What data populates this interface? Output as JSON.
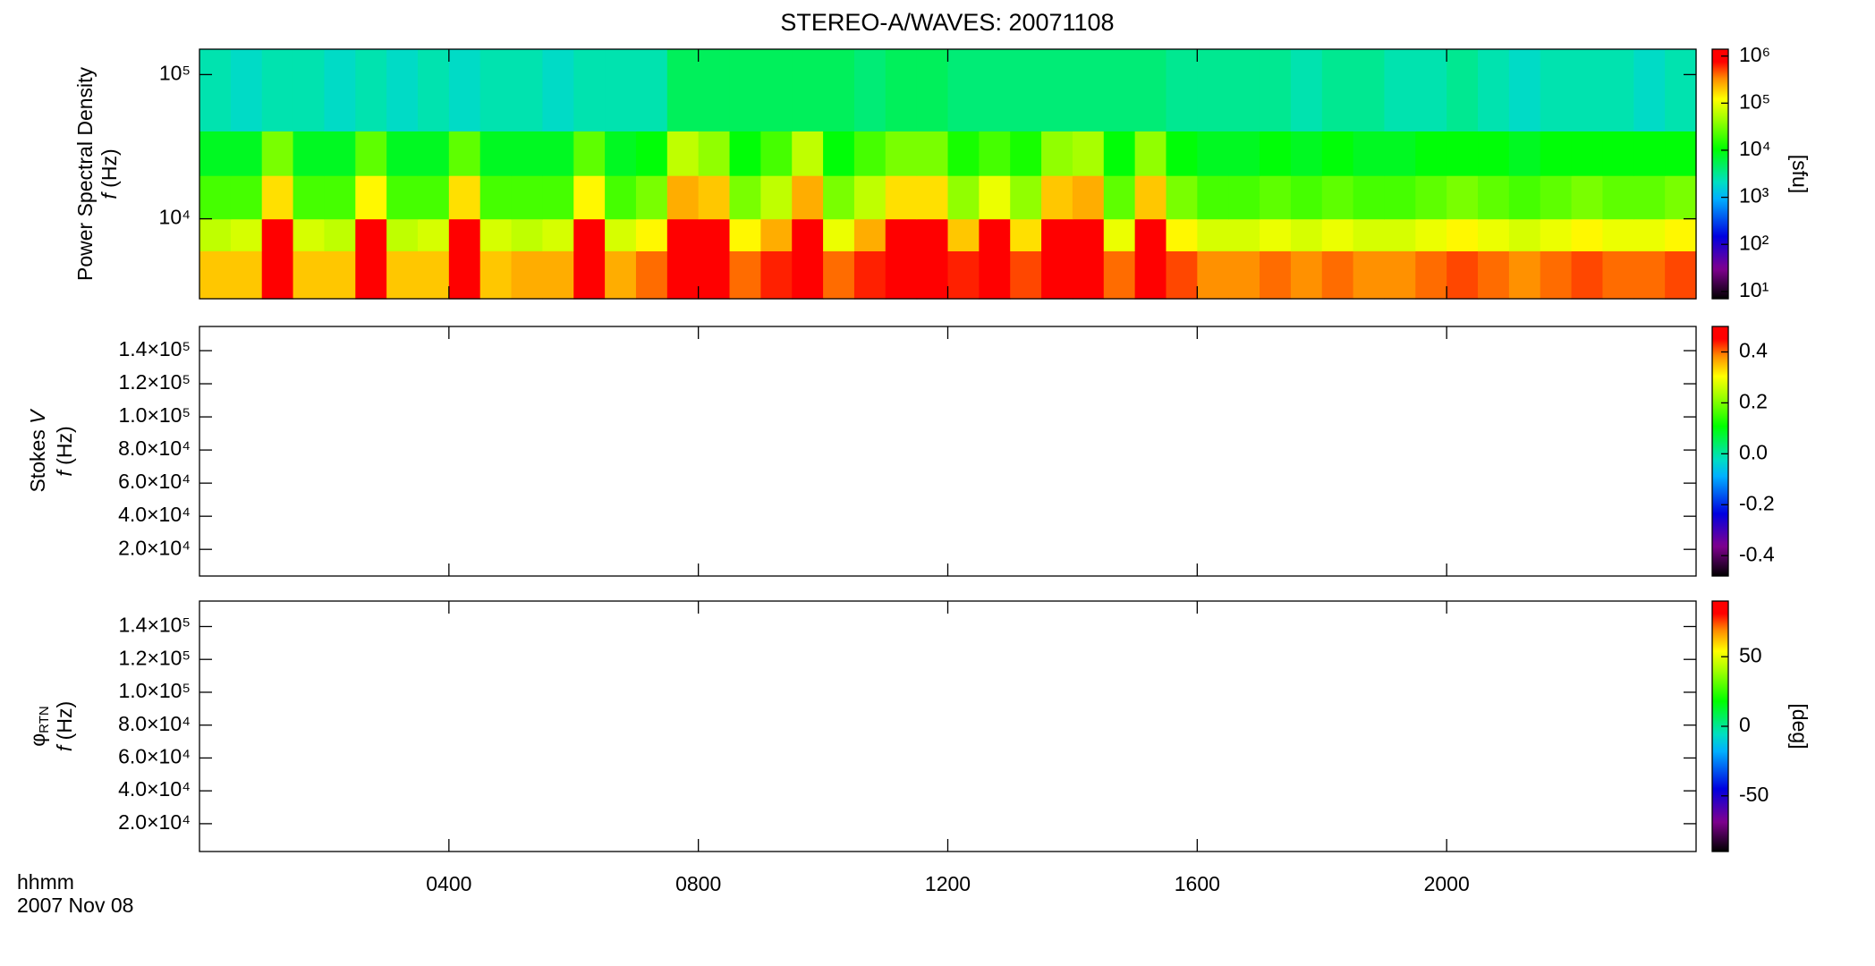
{
  "chart_data": [
    {
      "type": "heatmap",
      "title": "STEREO-A/WAVES: 20071108",
      "ylabel": "Power Spectral Density",
      "ylabel_var": "f",
      "ylabel_unit": "(Hz)",
      "ylog": true,
      "ylim": [
        2790,
        150000
      ],
      "yticks": [
        {
          "value": 10000,
          "label": "10⁴"
        },
        {
          "value": 100000,
          "label": "10⁵"
        }
      ],
      "xbins": [
        0,
        0.5,
        1,
        1.5,
        2,
        2.5,
        3,
        3.5,
        4,
        4.5,
        5,
        5.5,
        6,
        6.5,
        7,
        7.5,
        8,
        8.5,
        9,
        9.5,
        10,
        10.5,
        11,
        11.5,
        12,
        12.5,
        13,
        13.5,
        14,
        14.5,
        15,
        15.5,
        16,
        16.5,
        17,
        17.5,
        18,
        18.5,
        19,
        19.5,
        20,
        20.5,
        21,
        21.5,
        22,
        22.5,
        23,
        23.5,
        24
      ],
      "ybins": [
        2790,
        6000,
        10000,
        20000,
        40700,
        150000
      ],
      "values": [
        [
          200000,
          200000,
          1400000,
          200000,
          200000,
          1400000,
          200000,
          200000,
          1400000,
          200000,
          250000,
          250000,
          1400000,
          250000,
          400000,
          1400000,
          1400000,
          400000,
          630000,
          1400000,
          400000,
          630000,
          1400000,
          1400000,
          630000,
          1400000,
          500000,
          1400000,
          1400000,
          400000,
          1400000,
          500000,
          320000,
          320000,
          400000,
          320000,
          400000,
          320000,
          320000,
          400000,
          500000,
          400000,
          320000,
          400000,
          500000,
          400000,
          400000,
          500000
        ],
        [
          63000,
          80000,
          1400000,
          80000,
          63000,
          1400000,
          63000,
          80000,
          1400000,
          80000,
          63000,
          80000,
          1400000,
          80000,
          130000,
          1400000,
          1400000,
          130000,
          250000,
          1400000,
          100000,
          250000,
          1400000,
          1400000,
          200000,
          1400000,
          160000,
          1400000,
          1400000,
          100000,
          1400000,
          130000,
          80000,
          80000,
          100000,
          80000,
          100000,
          80000,
          80000,
          100000,
          130000,
          100000,
          80000,
          100000,
          130000,
          100000,
          100000,
          130000
        ],
        [
          20000,
          20000,
          160000,
          20000,
          20000,
          130000,
          20000,
          20000,
          160000,
          20000,
          20000,
          20000,
          130000,
          20000,
          32000,
          250000,
          200000,
          32000,
          63000,
          250000,
          32000,
          63000,
          160000,
          160000,
          40000,
          100000,
          40000,
          200000,
          250000,
          25000,
          200000,
          32000,
          20000,
          20000,
          25000,
          20000,
          25000,
          20000,
          20000,
          25000,
          32000,
          25000,
          20000,
          25000,
          32000,
          25000,
          25000,
          32000
        ],
        [
          8000,
          8000,
          32000,
          8000,
          8000,
          25000,
          8000,
          8000,
          25000,
          8000,
          8000,
          8000,
          25000,
          8000,
          10000,
          63000,
          40000,
          10000,
          20000,
          63000,
          10000,
          20000,
          32000,
          32000,
          13000,
          20000,
          13000,
          40000,
          50000,
          10000,
          40000,
          10000,
          8000,
          8000,
          10000,
          8000,
          10000,
          8000,
          8000,
          10000,
          10000,
          10000,
          8000,
          10000,
          10000,
          10000,
          10000,
          10000
        ],
        [
          2500,
          2000,
          2500,
          2500,
          2000,
          2500,
          2000,
          2500,
          2000,
          2500,
          2500,
          2000,
          2500,
          2500,
          2500,
          5000,
          5000,
          5000,
          5000,
          5000,
          5000,
          4000,
          5000,
          5000,
          4000,
          4000,
          4000,
          4000,
          4000,
          4000,
          4000,
          3200,
          3200,
          3200,
          3200,
          2500,
          3200,
          3200,
          2500,
          2500,
          3200,
          2500,
          2000,
          2500,
          2500,
          2500,
          2000,
          2500
        ]
      ],
      "colorbar": {
        "log": true,
        "lim": [
          7,
          1400000
        ],
        "label": "[sfu]",
        "ticks": [
          {
            "value": 10,
            "label": "10¹"
          },
          {
            "value": 100,
            "label": "10²"
          },
          {
            "value": 1000,
            "label": "10³"
          },
          {
            "value": 10000,
            "label": "10⁴"
          },
          {
            "value": 100000,
            "label": "10⁵"
          },
          {
            "value": 1000000,
            "label": "10⁶"
          }
        ]
      }
    },
    {
      "type": "heatmap",
      "ylabel": "Stokes",
      "ylabel_var": "V",
      "ylabel_f": "f",
      "ylabel_unit": "(Hz)",
      "ylim": [
        3900,
        154600
      ],
      "yticks": [
        {
          "value": 20000,
          "label": "2.0×10⁴"
        },
        {
          "value": 40000,
          "label": "4.0×10⁴"
        },
        {
          "value": 60000,
          "label": "6.0×10⁴"
        },
        {
          "value": 80000,
          "label": "8.0×10⁴"
        },
        {
          "value": 100000,
          "label": "1.0×10⁵"
        },
        {
          "value": 120000,
          "label": "1.2×10⁵"
        },
        {
          "value": 140000,
          "label": "1.4×10⁵"
        }
      ],
      "colorbar": {
        "log": false,
        "lim": [
          -0.48,
          0.5
        ],
        "ticks": [
          -0.4,
          -0.2,
          {
            "value": 0,
            "label": "0.0"
          },
          0.2,
          0.4
        ]
      }
    },
    {
      "type": "heatmap",
      "ylabel": "φ",
      "ylabel_sub": "RTN",
      "ylabel_var": "f",
      "ylabel_unit": "(Hz)",
      "ylim": [
        3070,
        155500
      ],
      "yticks": [
        {
          "value": 20000,
          "label": "2.0×10⁴"
        },
        {
          "value": 40000,
          "label": "4.0×10⁴"
        },
        {
          "value": 60000,
          "label": "6.0×10⁴"
        },
        {
          "value": 80000,
          "label": "8.0×10⁴"
        },
        {
          "value": 100000,
          "label": "1.0×10⁵"
        },
        {
          "value": 120000,
          "label": "1.2×10⁵"
        },
        {
          "value": 140000,
          "label": "1.4×10⁵"
        }
      ],
      "xlim": [
        0,
        24
      ],
      "xticks": [
        {
          "value": 4,
          "label": "0400"
        },
        {
          "value": 8,
          "label": "0800"
        },
        {
          "value": 12,
          "label": "1200"
        },
        {
          "value": 16,
          "label": "1600"
        },
        {
          "value": 20,
          "label": "2000"
        }
      ],
      "xlabel": "hhmm",
      "date": "2007 Nov 08",
      "colorbar": {
        "log": false,
        "lim": [
          -90,
          90
        ],
        "label": "[deg]",
        "ticks": [
          -50,
          0,
          50
        ]
      }
    }
  ]
}
